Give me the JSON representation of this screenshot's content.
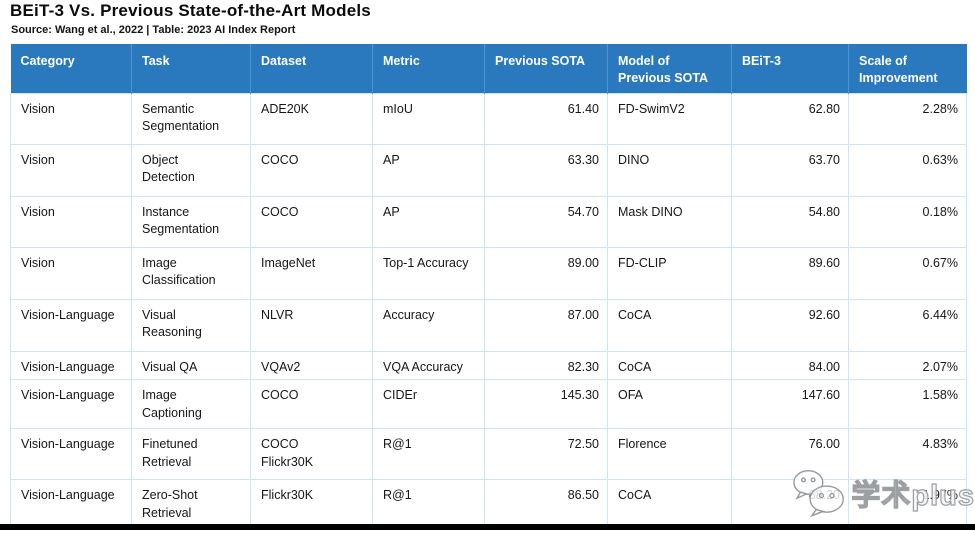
{
  "chart_data": {
    "type": "table",
    "title": "BEiT-3 Vs. Previous State-of-the-Art Models",
    "source": "Source: Wang et al., 2022 | Table: 2023 AI Index Report",
    "columns": [
      {
        "key": "category",
        "label": "Category",
        "align": "left"
      },
      {
        "key": "task",
        "label": "Task",
        "align": "left"
      },
      {
        "key": "dataset",
        "label": "Dataset",
        "align": "left"
      },
      {
        "key": "metric",
        "label": "Metric",
        "align": "left"
      },
      {
        "key": "previous-sota",
        "label": "Previous SOTA",
        "align": "right"
      },
      {
        "key": "model-of-previous-sota",
        "label": "Model of\nPrevious SOTA",
        "align": "left"
      },
      {
        "key": "beit-3",
        "label": "BEiT-3",
        "align": "right"
      },
      {
        "key": "scale-of-improvement",
        "label": "Scale of\nImprovement",
        "align": "right"
      }
    ],
    "rows": [
      [
        "Vision",
        "Semantic\nSegmentation",
        "ADE20K",
        "mIoU",
        "61.40",
        "FD-SwimV2",
        "62.80",
        "2.28%"
      ],
      [
        "Vision",
        "Object\nDetection",
        "COCO",
        "AP",
        "63.30",
        "DINO",
        "63.70",
        "0.63%"
      ],
      [
        "Vision",
        "Instance\nSegmentation",
        "COCO",
        "AP",
        "54.70",
        "Mask DINO",
        "54.80",
        "0.18%"
      ],
      [
        "Vision",
        "Image\nClassification",
        "ImageNet",
        "Top-1 Accuracy",
        "89.00",
        "FD-CLIP",
        "89.60",
        "0.67%"
      ],
      [
        "Vision-Language",
        "Visual\nReasoning",
        "NLVR",
        "Accuracy",
        "87.00",
        "CoCA",
        "92.60",
        "6.44%"
      ],
      [
        "Vision-Language",
        "Visual QA",
        "VQAv2",
        "VQA Accuracy",
        "82.30",
        "CoCA",
        "84.00",
        "2.07%"
      ],
      [
        "Vision-Language",
        "Image\nCaptioning",
        "COCO",
        "CIDEr",
        "145.30",
        "OFA",
        "147.60",
        "1.58%"
      ],
      [
        "Vision-Language",
        "Finetuned\nRetrieval",
        "COCO\nFlickr30K",
        "R@1",
        "72.50",
        "Florence",
        "76.00",
        "4.83%"
      ],
      [
        "Vision-Language",
        "Zero-Shot\nRetrieval",
        "Flickr30K",
        "R@1",
        "86.50",
        "CoCA",
        "88.20",
        "1.97%"
      ]
    ]
  },
  "watermark": {
    "text": "学术plus",
    "icon": "wechat-icon"
  },
  "colors": {
    "header_bg": "#2A79BE",
    "header_text": "#FFFFFF",
    "header_divider": "#4E94CF",
    "cell_border": "#CFE4F2",
    "body_text": "#161616",
    "bottom_bar": "#000000"
  }
}
